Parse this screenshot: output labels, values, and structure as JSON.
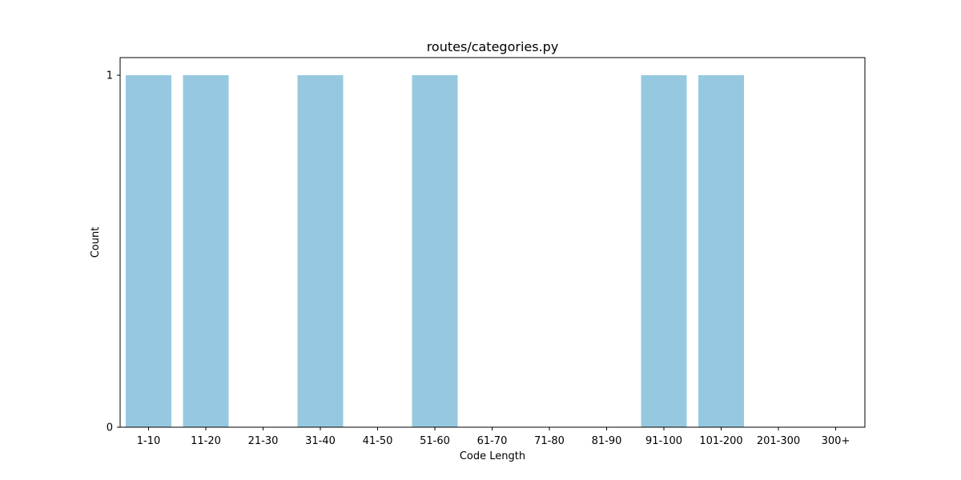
{
  "chart_data": {
    "type": "bar",
    "title": "routes/categories.py",
    "xlabel": "Code Length",
    "ylabel": "Count",
    "categories": [
      "1-10",
      "11-20",
      "21-30",
      "31-40",
      "41-50",
      "51-60",
      "61-70",
      "71-80",
      "81-90",
      "91-100",
      "101-200",
      "201-300",
      "300+"
    ],
    "values": [
      1,
      1,
      0,
      1,
      0,
      1,
      0,
      0,
      0,
      1,
      1,
      0,
      0
    ],
    "ylim": [
      0,
      1
    ],
    "yticks": [
      0,
      1
    ],
    "grid": false,
    "bar_color": "#96c9df"
  }
}
